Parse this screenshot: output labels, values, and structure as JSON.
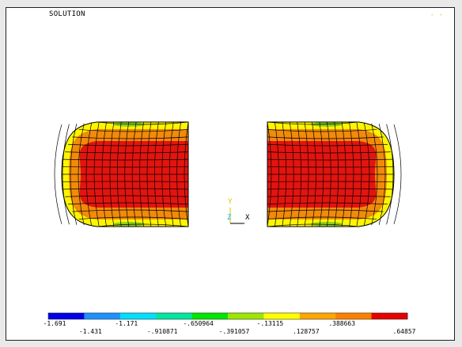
{
  "window": {
    "title_text": "SOLUTION",
    "corner_text": "- -"
  },
  "triad": {
    "x_label": "X",
    "y_label": "Y",
    "z_label": "Z"
  },
  "legend": {
    "colors": [
      "#0000e8",
      "#1e90ff",
      "#00dfff",
      "#00e6a0",
      "#00e600",
      "#9ce600",
      "#ffff00",
      "#ffa500",
      "#ff8000",
      "#e60000"
    ],
    "labels": [
      "-1.691",
      "-1.431",
      "-1.171",
      "-.910871",
      "-.650964",
      "-.391057",
      "-.13115",
      ".128757",
      ".388663",
      ".64857"
    ]
  },
  "colors": {
    "red": "#e3140f",
    "orange": "#f28a0a",
    "yellow": "#fff500",
    "green": "#8fd11a",
    "grid": "#000000"
  }
}
